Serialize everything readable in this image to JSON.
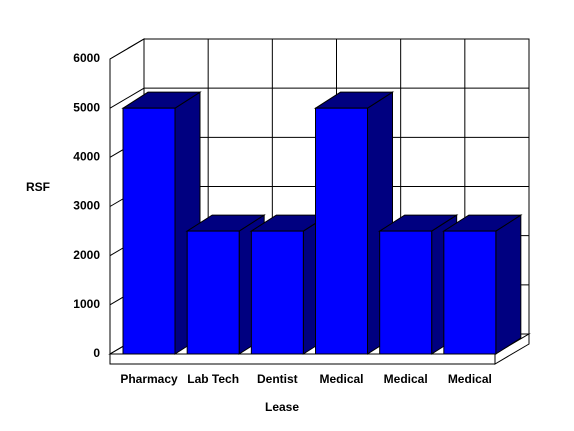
{
  "chart_data": {
    "type": "bar",
    "x_label": "Lease",
    "y_label": "RSF",
    "categories": [
      "Pharmacy",
      "Lab Tech",
      "Dentist",
      "Medical",
      "Medical",
      "Medical"
    ],
    "values": [
      5000,
      2500,
      2500,
      5000,
      2500,
      2500
    ],
    "color": "#0000ff",
    "side_color": "#000080",
    "ylim": [
      0,
      6000
    ],
    "yticks": [
      0,
      1000,
      2000,
      3000,
      4000,
      5000,
      6000
    ],
    "grid": true
  }
}
